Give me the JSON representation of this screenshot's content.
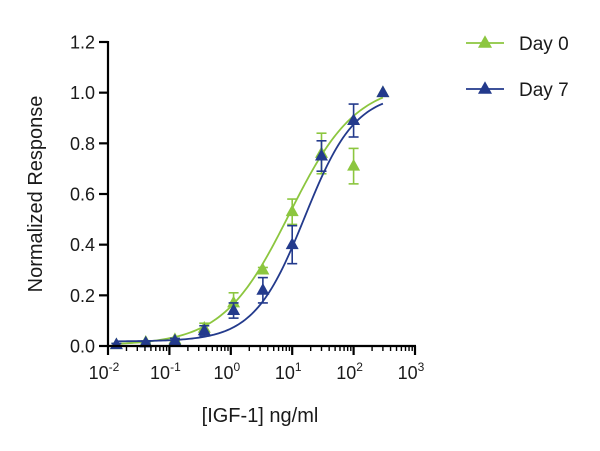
{
  "chart_data": {
    "type": "scatter",
    "xlabel": "[IGF-1] ng/ml",
    "ylabel": "Normalized Response",
    "xscale": "log",
    "xlim": [
      0.01,
      1000
    ],
    "ylim": [
      0.0,
      1.2
    ],
    "x_ticks": [
      {
        "base": "10",
        "exp": "-2",
        "value": 0.01
      },
      {
        "base": "10",
        "exp": "-1",
        "value": 0.1
      },
      {
        "base": "10",
        "exp": "0",
        "value": 1
      },
      {
        "base": "10",
        "exp": "1",
        "value": 10
      },
      {
        "base": "10",
        "exp": "2",
        "value": 100
      },
      {
        "base": "10",
        "exp": "3",
        "value": 1000
      }
    ],
    "y_ticks": [
      {
        "label": "0.0",
        "value": 0.0
      },
      {
        "label": "0.2",
        "value": 0.2
      },
      {
        "label": "0.4",
        "value": 0.4
      },
      {
        "label": "0.6",
        "value": 0.6
      },
      {
        "label": "0.8",
        "value": 0.8
      },
      {
        "label": "1.0",
        "value": 1.0
      },
      {
        "label": "1.2",
        "value": 1.2
      }
    ],
    "grid": false,
    "legend_position": "top-right",
    "series": [
      {
        "name": "Day 0",
        "color": "#8cc63f",
        "marker": "triangle-up",
        "points": [
          {
            "x": 0.0137,
            "y": 0.005,
            "err": 0.005
          },
          {
            "x": 0.0412,
            "y": 0.015,
            "err": 0.005
          },
          {
            "x": 0.123,
            "y": 0.025,
            "err": 0.005
          },
          {
            "x": 0.37,
            "y": 0.07,
            "err": 0.02
          },
          {
            "x": 1.11,
            "y": 0.17,
            "err": 0.04
          },
          {
            "x": 3.33,
            "y": 0.3,
            "err": 0.01
          },
          {
            "x": 10,
            "y": 0.53,
            "err": 0.05
          },
          {
            "x": 30,
            "y": 0.76,
            "err": 0.08
          },
          {
            "x": 100,
            "y": 0.71,
            "err": 0.07
          },
          {
            "x": 300,
            "y": 1.0,
            "err": 0.0
          }
        ],
        "fit": {
          "bottom": 0.003,
          "top": 1.04,
          "ec50": 9.0,
          "hill": 0.8
        }
      },
      {
        "name": "Day 7",
        "color": "#233a8c",
        "marker": "triangle-up",
        "points": [
          {
            "x": 0.0137,
            "y": 0.005,
            "err": 0.005
          },
          {
            "x": 0.0412,
            "y": 0.012,
            "err": 0.005
          },
          {
            "x": 0.123,
            "y": 0.02,
            "err": 0.01
          },
          {
            "x": 0.37,
            "y": 0.06,
            "err": 0.02
          },
          {
            "x": 1.11,
            "y": 0.14,
            "err": 0.03
          },
          {
            "x": 3.33,
            "y": 0.22,
            "err": 0.05
          },
          {
            "x": 10,
            "y": 0.4,
            "err": 0.075
          },
          {
            "x": 30,
            "y": 0.75,
            "err": 0.06
          },
          {
            "x": 100,
            "y": 0.89,
            "err": 0.065
          },
          {
            "x": 300,
            "y": 1.0,
            "err": 0.0
          }
        ],
        "fit": {
          "bottom": 0.018,
          "top": 1.0,
          "ec50": 16.0,
          "hill": 1.05
        }
      }
    ]
  }
}
